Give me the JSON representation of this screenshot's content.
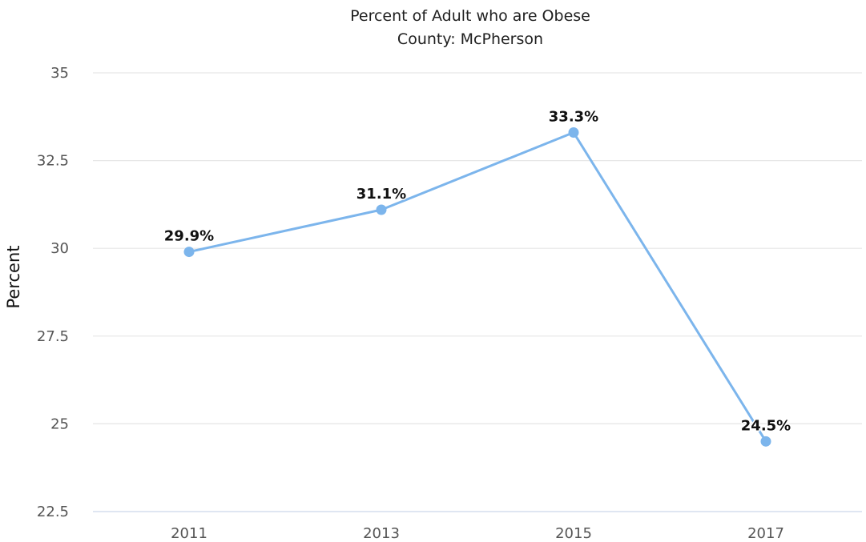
{
  "chart_data": {
    "type": "line",
    "title": "Percent of Adult who are Obese",
    "subtitle": "County: McPherson",
    "xlabel": "",
    "ylabel": "Percent",
    "categories": [
      "2011",
      "2013",
      "2015",
      "2017"
    ],
    "series": [
      {
        "values": [
          29.9,
          31.1,
          33.3,
          24.5
        ],
        "data_labels": [
          "29.9%",
          "31.1%",
          "33.3%",
          "24.5%"
        ],
        "color": "#7cb5ec"
      }
    ],
    "ylim": [
      22.5,
      35
    ],
    "yticks": [
      "22.5",
      "25",
      "27.5",
      "30",
      "32.5",
      "35"
    ],
    "grid": "horizontal",
    "legend": "none"
  },
  "colors": {
    "series": "#7cb5ec",
    "grid": "#e6e6e6",
    "axis": "#ccd6eb",
    "title": "#1f1f1f",
    "tick": "#555555"
  }
}
